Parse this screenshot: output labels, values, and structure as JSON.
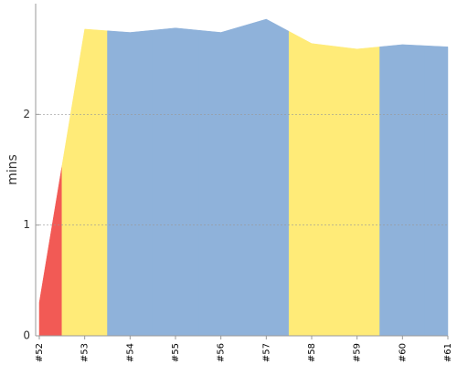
{
  "chart_data": {
    "type": "area",
    "y_label": "mins",
    "categories": [
      "#52",
      "#53",
      "#54",
      "#55",
      "#56",
      "#57",
      "#58",
      "#59",
      "#60",
      "#61"
    ],
    "values": [
      0.3,
      2.77,
      2.74,
      2.78,
      2.74,
      2.86,
      2.64,
      2.59,
      2.63,
      2.61
    ],
    "colors": [
      "#f25a55",
      "#ffeb78",
      "#8fb2da",
      "#8fb2da",
      "#8fb2da",
      "#8fb2da",
      "#ffeb78",
      "#ffeb78",
      "#8fb2da",
      "#8fb2da"
    ],
    "ylim": [
      0,
      3
    ],
    "yticks": [
      0,
      1,
      2
    ],
    "grid": true
  }
}
